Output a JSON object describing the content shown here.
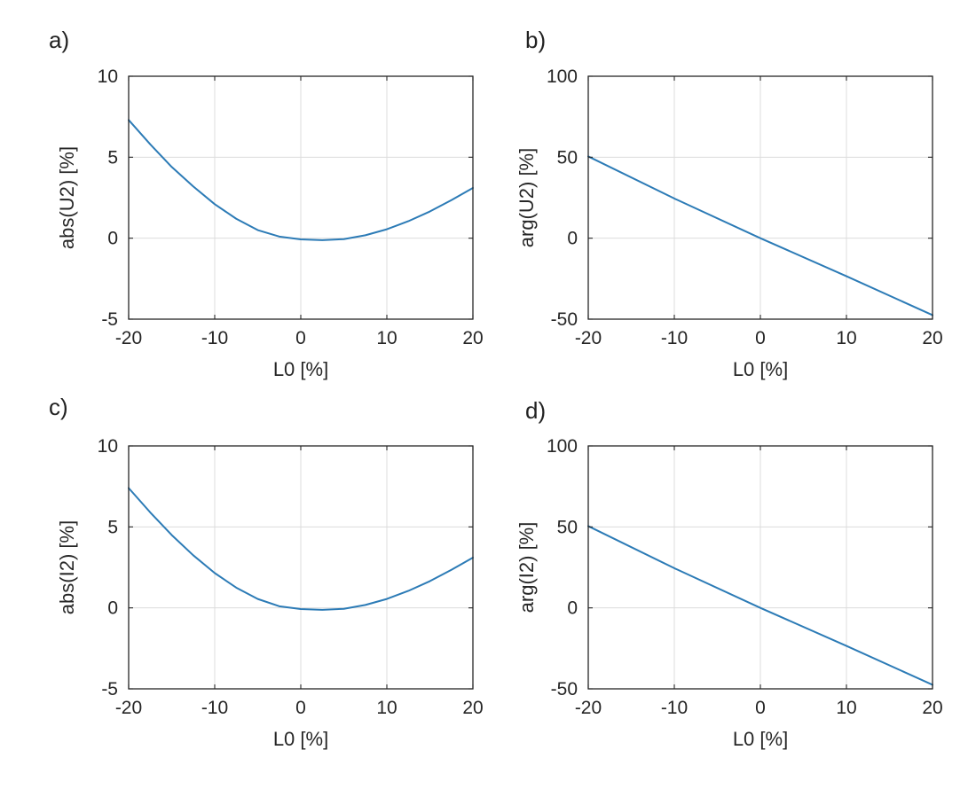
{
  "figure": {
    "line_color": "#2c7bb6"
  },
  "chart_data": [
    {
      "type": "line",
      "panel_label": "a)",
      "xlabel": "L0 [%]",
      "ylabel": "abs(U2) [%]",
      "xlim": [
        -20,
        20
      ],
      "ylim": [
        -5,
        10
      ],
      "xticks": [
        -20,
        -10,
        0,
        10,
        20
      ],
      "yticks": [
        -5,
        0,
        5,
        10
      ],
      "grid": true,
      "series": [
        {
          "name": "abs(U2)",
          "x": [
            -20,
            -17.5,
            -15,
            -12.5,
            -10,
            -7.5,
            -5,
            -2.5,
            0,
            2.5,
            5,
            7.5,
            10,
            12.5,
            15,
            17.5,
            20
          ],
          "y": [
            7.3,
            5.8,
            4.4,
            3.2,
            2.1,
            1.2,
            0.5,
            0.1,
            -0.07,
            -0.12,
            -0.06,
            0.18,
            0.55,
            1.05,
            1.65,
            2.35,
            3.1
          ]
        }
      ]
    },
    {
      "type": "line",
      "panel_label": "b)",
      "xlabel": "L0 [%]",
      "ylabel": "arg(U2) [%]",
      "xlim": [
        -20,
        20
      ],
      "ylim": [
        -50,
        100
      ],
      "xticks": [
        -20,
        -10,
        0,
        10,
        20
      ],
      "yticks": [
        -50,
        0,
        50,
        100
      ],
      "grid": true,
      "series": [
        {
          "name": "arg(U2)",
          "x": [
            -20,
            -10,
            0,
            10,
            20
          ],
          "y": [
            50.5,
            24.5,
            0,
            -23.5,
            -47.5
          ]
        }
      ]
    },
    {
      "type": "line",
      "panel_label": "c)",
      "xlabel": "L0 [%]",
      "ylabel": "abs(I2) [%]",
      "xlim": [
        -20,
        20
      ],
      "ylim": [
        -5,
        10
      ],
      "xticks": [
        -20,
        -10,
        0,
        10,
        20
      ],
      "yticks": [
        -5,
        0,
        5,
        10
      ],
      "grid": true,
      "series": [
        {
          "name": "abs(I2)",
          "x": [
            -20,
            -17.5,
            -15,
            -12.5,
            -10,
            -7.5,
            -5,
            -2.5,
            0,
            2.5,
            5,
            7.5,
            10,
            12.5,
            15,
            17.5,
            20
          ],
          "y": [
            7.4,
            5.9,
            4.5,
            3.25,
            2.15,
            1.25,
            0.55,
            0.1,
            -0.07,
            -0.12,
            -0.06,
            0.18,
            0.55,
            1.05,
            1.65,
            2.35,
            3.1
          ]
        }
      ]
    },
    {
      "type": "line",
      "panel_label": "d)",
      "xlabel": "L0 [%]",
      "ylabel": "arg(I2) [%]",
      "xlim": [
        -20,
        20
      ],
      "ylim": [
        -50,
        100
      ],
      "xticks": [
        -20,
        -10,
        0,
        10,
        20
      ],
      "yticks": [
        -50,
        0,
        50,
        100
      ],
      "grid": true,
      "series": [
        {
          "name": "arg(I2)",
          "x": [
            -20,
            -10,
            0,
            10,
            20
          ],
          "y": [
            50.5,
            24.5,
            0,
            -23.5,
            -47.5
          ]
        }
      ]
    }
  ]
}
